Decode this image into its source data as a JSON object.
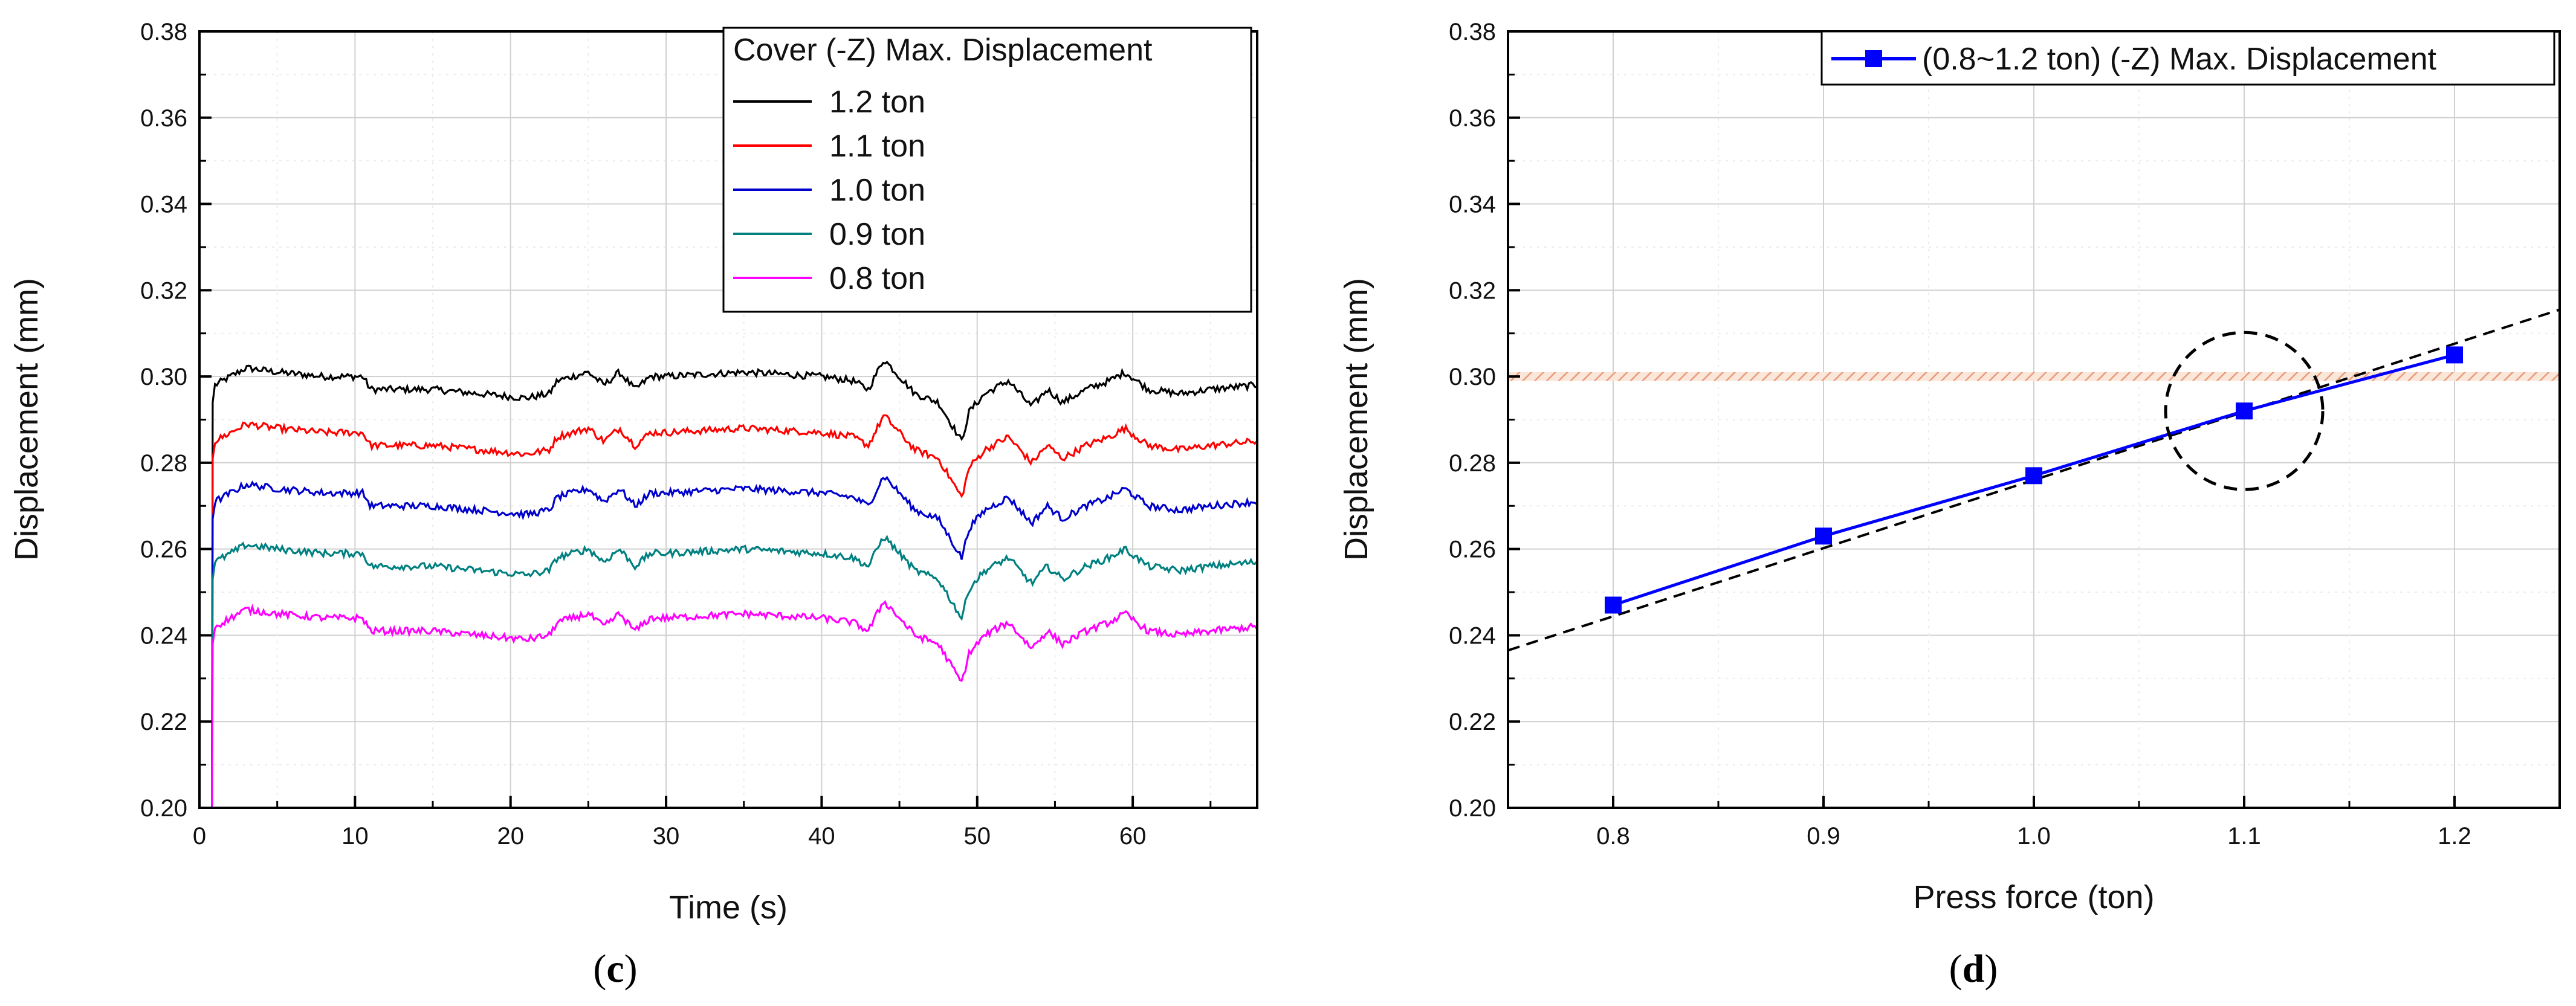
{
  "chart_data": [
    {
      "type": "line",
      "caption_letter": "c",
      "title": "",
      "xlabel": "Time (s)",
      "ylabel": "Displacement (mm)",
      "xlim": [
        0,
        68
      ],
      "ylim": [
        0.2,
        0.38
      ],
      "xticks": [
        "0",
        "10",
        "20",
        "30",
        "40",
        "50",
        "60"
      ],
      "yticks": [
        "0.20",
        "0.22",
        "0.24",
        "0.26",
        "0.28",
        "0.30",
        "0.32",
        "0.34",
        "0.36",
        "0.38"
      ],
      "grid": true,
      "legend": {
        "title": "Cover (-Z) Max. Displacement",
        "position": "top-right"
      },
      "series": [
        {
          "name": "1.2 ton",
          "color": "#000000",
          "base": 0.298
        },
        {
          "name": "1.1 ton",
          "color": "#ff0000",
          "base": 0.285
        },
        {
          "name": "1.0 ton",
          "color": "#0000cc",
          "base": 0.271
        },
        {
          "name": "0.9 ton",
          "color": "#008080",
          "base": 0.257
        },
        {
          "name": "0.8 ton",
          "color": "#ff00ff",
          "base": 0.242
        }
      ],
      "profile_x": [
        0.8,
        1.0,
        2.0,
        3.0,
        5.0,
        8.0,
        10.5,
        11.0,
        15.0,
        18.0,
        21.0,
        22.5,
        23.0,
        25.0,
        26.0,
        27.0,
        28.0,
        29.0,
        30.0,
        35.0,
        40.0,
        42.0,
        43.0,
        44.0,
        45.0,
        46.0,
        47.5,
        48.5,
        49.0,
        49.5,
        50.5,
        52.0,
        53.5,
        54.5,
        55.5,
        57.0,
        58.5,
        59.5,
        61.0,
        63.0,
        65.0,
        68.0
      ],
      "profile_dy": [
        0.0,
        0.0,
        0.002,
        0.004,
        0.003,
        0.002,
        0.002,
        -0.001,
        -0.001,
        -0.002,
        -0.003,
        -0.002,
        0.001,
        0.003,
        0.0,
        0.003,
        -0.001,
        0.002,
        0.002,
        0.003,
        0.002,
        0.001,
        -0.001,
        0.006,
        0.002,
        -0.002,
        -0.004,
        -0.01,
        -0.013,
        -0.006,
        -0.002,
        0.001,
        -0.005,
        -0.001,
        -0.004,
        -0.001,
        0.001,
        0.003,
        -0.001,
        -0.002,
        -0.001,
        0.0
      ]
    },
    {
      "type": "line",
      "caption_letter": "d",
      "title": "",
      "xlabel": "Press force (ton)",
      "ylabel": "Displacement (mm)",
      "xlim": [
        0.75,
        1.25
      ],
      "ylim": [
        0.2,
        0.38
      ],
      "xticks": [
        "0.8",
        "0.9",
        "1.0",
        "1.1",
        "1.2"
      ],
      "yticks": [
        "0.20",
        "0.22",
        "0.24",
        "0.26",
        "0.28",
        "0.30",
        "0.32",
        "0.34",
        "0.36",
        "0.38"
      ],
      "grid": true,
      "legend": {
        "position": "top-right"
      },
      "series": [
        {
          "name": "(0.8~1.2 ton) (-Z) Max. Displacement",
          "color": "#0000ff",
          "x": [
            0.8,
            0.9,
            1.0,
            1.1,
            1.2
          ],
          "y": [
            0.247,
            0.263,
            0.277,
            0.292,
            0.305
          ]
        }
      ],
      "trend_extension": {
        "x": [
          0.75,
          1.25
        ],
        "y": [
          0.2365,
          0.3155
        ],
        "style": "dashed",
        "color": "#000000"
      },
      "threshold_band": {
        "y": [
          0.299,
          0.301
        ],
        "color": "#f0b89a",
        "style": "hatched"
      },
      "highlight_circle": {
        "x": 1.1,
        "y": 0.292,
        "style": "dashed"
      }
    }
  ]
}
